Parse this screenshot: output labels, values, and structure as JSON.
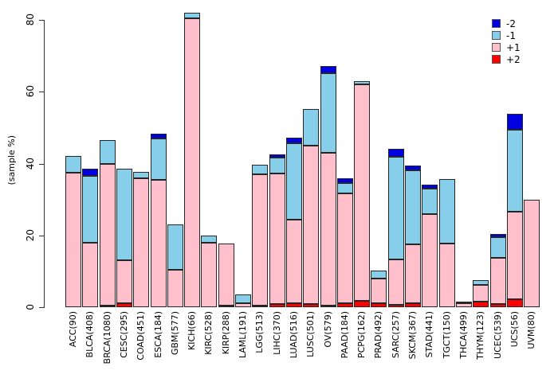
{
  "figure": {
    "background": "#ffffff"
  },
  "y_axis": {
    "label": "(sample %)",
    "ticks": [
      0,
      20,
      40,
      60,
      80
    ]
  },
  "legend": {
    "position": "top-right",
    "items": [
      {
        "label": "-2",
        "color": "#0000E0"
      },
      {
        "label": "-1",
        "color": "#87CEEB"
      },
      {
        "label": "+1",
        "color": "#FFC0CB"
      },
      {
        "label": "+2",
        "color": "#FF0000"
      }
    ]
  },
  "chart_data": {
    "type": "bar",
    "stacked": true,
    "title": "",
    "xlabel": "",
    "ylabel": "(sample %)",
    "ylim": [
      0,
      80
    ],
    "yticks": [
      0,
      20,
      40,
      60,
      80
    ],
    "grid": false,
    "legend_position": "top-right",
    "stack_order_bottom_to_top": [
      "+2",
      "+1",
      "-1",
      "-2"
    ],
    "categories": [
      "ACC(90)",
      "BLCA(408)",
      "BRCA(1080)",
      "CESC(295)",
      "COAD(451)",
      "ESCA(184)",
      "GBM(577)",
      "KICH(66)",
      "KIRC(528)",
      "KIRP(288)",
      "LAML(191)",
      "LGG(513)",
      "LIHC(370)",
      "LUAD(516)",
      "LUSC(501)",
      "OV(579)",
      "PAAD(184)",
      "PCPG(162)",
      "PRAD(492)",
      "SARC(257)",
      "SKCM(367)",
      "STAD(441)",
      "TGCT(150)",
      "THCA(499)",
      "THYM(123)",
      "UCEC(539)",
      "UCS(56)",
      "UVM(80)"
    ],
    "series": [
      {
        "name": "-2",
        "color": "#0000E0",
        "values": [
          0,
          2.0,
          0,
          0,
          0,
          1.3,
          0,
          0,
          0,
          0,
          0,
          0,
          0.9,
          1.5,
          0,
          2.0,
          1.4,
          0,
          0,
          2.2,
          1.4,
          1.2,
          0,
          0,
          0,
          0.9,
          4.5,
          0
        ]
      },
      {
        "name": "-1",
        "color": "#87CEEB",
        "values": [
          4.5,
          18.6,
          6.5,
          25.5,
          1.7,
          11.4,
          12.5,
          1.5,
          2.0,
          0,
          2.3,
          2.8,
          4.4,
          21.3,
          10.3,
          22.3,
          2.8,
          1.0,
          2.2,
          28.5,
          20.5,
          7.0,
          17.9,
          0.4,
          1.5,
          5.7,
          22.7,
          0
        ]
      },
      {
        "name": "+1",
        "color": "#FFC0CB",
        "values": [
          37.5,
          18.0,
          39.6,
          12.0,
          36.0,
          35.5,
          10.5,
          80.5,
          18.0,
          17.3,
          1.2,
          36.5,
          36.4,
          23.2,
          44.0,
          42.4,
          30.7,
          60.2,
          7.0,
          12.7,
          16.6,
          26.0,
          17.8,
          1.0,
          4.5,
          12.9,
          24.5,
          30.0
        ]
      },
      {
        "name": "+2",
        "color": "#FF0000",
        "values": [
          0,
          0,
          0.4,
          1.0,
          0,
          0,
          0,
          0,
          0,
          0.4,
          0,
          0.4,
          0.8,
          1.2,
          0.9,
          0.5,
          1.1,
          1.8,
          1.0,
          0.7,
          1.0,
          0,
          0,
          0,
          1.6,
          0.8,
          2.2,
          0
        ]
      }
    ]
  }
}
